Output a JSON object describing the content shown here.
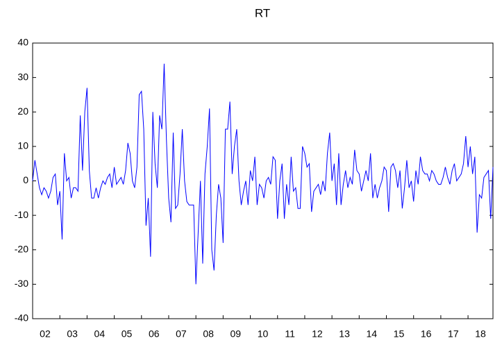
{
  "chart_data": {
    "type": "line",
    "title": "RT",
    "categories": [
      null,
      null,
      null,
      null,
      null,
      null,
      "02",
      null,
      null,
      null,
      null,
      null,
      null,
      null,
      null,
      null,
      null,
      null,
      "03",
      null,
      null,
      null,
      null,
      null,
      null,
      null,
      null,
      null,
      null,
      null,
      "04",
      null,
      null,
      null,
      null,
      null,
      null,
      null,
      null,
      null,
      null,
      null,
      "05",
      null,
      null,
      null,
      null,
      null,
      null,
      null,
      null,
      null,
      null,
      null,
      "06",
      null,
      null,
      null,
      null,
      null,
      null,
      null,
      null,
      null,
      null,
      null,
      "07",
      null,
      null,
      null,
      null,
      null,
      null,
      null,
      null,
      null,
      null,
      null,
      "08",
      null,
      null,
      null,
      null,
      null,
      null,
      null,
      null,
      null,
      null,
      null,
      "09",
      null,
      null,
      null,
      null,
      null,
      null,
      null,
      null,
      null,
      null,
      null,
      "10",
      null,
      null,
      null,
      null,
      null,
      null,
      null,
      null,
      null,
      null,
      null,
      "11",
      null,
      null,
      null,
      null,
      null,
      null,
      null,
      null,
      null,
      null,
      null,
      "12",
      null,
      null,
      null,
      null,
      null,
      null,
      null,
      null,
      null,
      null,
      null,
      "13",
      null,
      null,
      null,
      null,
      null,
      null,
      null,
      null,
      null,
      null,
      null,
      "14",
      null,
      null,
      null,
      null,
      null,
      null,
      null,
      null,
      null,
      null,
      null,
      "15",
      null,
      null,
      null,
      null,
      null,
      null,
      null,
      null,
      null,
      null,
      null,
      "16",
      null,
      null,
      null,
      null,
      null,
      null,
      null,
      null,
      null,
      null,
      null,
      "17",
      null,
      null,
      null,
      null,
      null,
      null,
      null,
      null,
      null,
      null,
      null,
      "18",
      null,
      null,
      null,
      null,
      null
    ],
    "series": [
      {
        "color": "#0000ff",
        "values": [
          0,
          6,
          2,
          -2,
          -4,
          -2,
          -3,
          -5,
          -3,
          1,
          2,
          -7,
          -3,
          -17,
          8,
          0,
          1,
          -5,
          -2,
          -2,
          -3,
          19,
          3,
          20,
          27,
          3,
          -5,
          -5,
          -2,
          -5,
          -2,
          0,
          -1,
          1,
          2,
          -2,
          4,
          -1,
          0,
          1,
          -1,
          3,
          11,
          8,
          0,
          -2,
          4,
          25,
          26,
          15,
          -13,
          -5,
          -22,
          20,
          5,
          -2,
          19,
          15,
          34,
          12,
          -5,
          -12,
          14,
          -8,
          -7,
          2,
          15,
          0,
          -6,
          -7,
          -7,
          -7,
          -30,
          -15,
          0,
          -24,
          2,
          10,
          21,
          -20,
          -26,
          -10,
          -1,
          -5,
          -18,
          15,
          15,
          23,
          2,
          10,
          15,
          0,
          -7,
          -3,
          0,
          -7,
          3,
          0,
          7,
          -7,
          -1,
          -2,
          -5,
          0,
          1,
          -1,
          7,
          6,
          -11,
          0,
          5,
          -11,
          -1,
          -7,
          7,
          -3,
          -2,
          -8,
          -8,
          10,
          8,
          4,
          5,
          -9,
          -3,
          -2,
          -1,
          -4,
          0,
          -3,
          8,
          14,
          0,
          5,
          -7,
          8,
          -7,
          -1,
          3,
          -2,
          1,
          -1,
          9,
          3,
          2,
          -3,
          0,
          3,
          0,
          8,
          -5,
          -1,
          -5,
          -2,
          0,
          4,
          3,
          -9,
          4,
          5,
          3,
          -2,
          3,
          -8,
          -2,
          6,
          -2,
          0,
          -6,
          3,
          -1,
          7,
          3,
          2,
          2,
          0,
          3,
          2,
          0,
          -1,
          -1,
          1,
          4,
          1,
          -1,
          3,
          5,
          0,
          1,
          2,
          5,
          13,
          4,
          10,
          2,
          7,
          -15,
          -4,
          -5,
          1,
          2,
          3,
          -11,
          4
        ]
      }
    ],
    "ylim": [
      -40,
      40
    ],
    "yticks": [
      -40,
      -30,
      -20,
      -10,
      0,
      10,
      20,
      30,
      40
    ],
    "grid": false
  }
}
